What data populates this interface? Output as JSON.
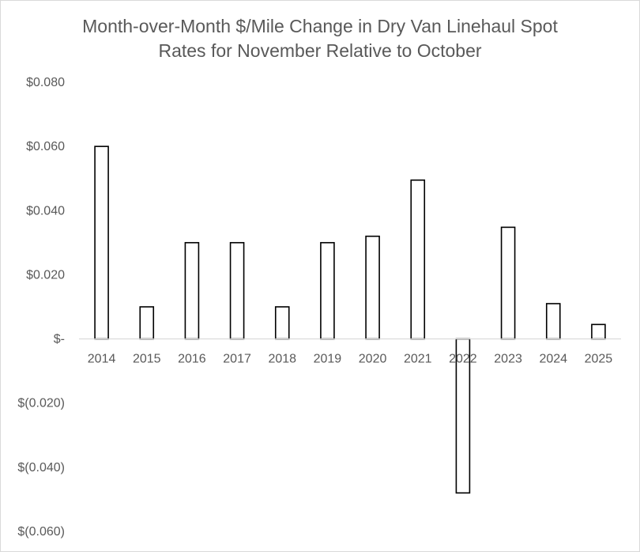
{
  "chart_data": {
    "type": "bar",
    "title": "Month-over-Month $/Mile Change in Dry Van Linehaul Spot Rates for November Relative to October",
    "title_lines": [
      "Month-over-Month $/Mile Change in Dry Van Linehaul Spot",
      "Rates for November Relative to October"
    ],
    "xlabel": "",
    "ylabel": "",
    "categories": [
      "2014",
      "2015",
      "2016",
      "2017",
      "2018",
      "2019",
      "2020",
      "2021",
      "2022",
      "2023",
      "2024",
      "2025"
    ],
    "values": [
      0.06,
      0.01,
      0.03,
      0.03,
      0.01,
      0.03,
      0.032,
      0.0495,
      -0.048,
      0.0348,
      0.011,
      0.0045
    ],
    "ylim": [
      -0.06,
      0.08
    ],
    "yticks": [
      0.08,
      0.06,
      0.04,
      0.02,
      0.0,
      -0.02,
      -0.04,
      -0.06
    ],
    "ytick_labels": [
      "$0.080",
      "$0.060",
      "$0.040",
      "$0.020",
      "$-",
      "$(0.020)",
      "$(0.040)",
      "$(0.060)"
    ],
    "grid": false,
    "legend": "none",
    "colors": {
      "bar_fill": "#ffffff",
      "bar_stroke": "#000000",
      "text": "#595959",
      "axis": "#d9d9d9"
    }
  }
}
